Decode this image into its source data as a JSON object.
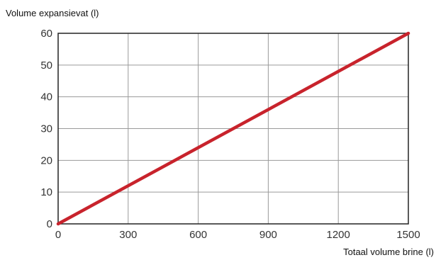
{
  "chart_data": {
    "type": "line",
    "xlabel": "Totaal volume brine (l)",
    "ylabel": "Volume expansievat (l)",
    "xlim": [
      0,
      1500
    ],
    "ylim": [
      0,
      60
    ],
    "x_ticks": [
      "0",
      "300",
      "600",
      "900",
      "1200",
      "1500"
    ],
    "y_ticks": [
      "0",
      "10",
      "20",
      "30",
      "40",
      "50",
      "60"
    ],
    "grid": true,
    "legend": "none",
    "series": [
      {
        "color": "#c8232c",
        "x": [
          0,
          1500
        ],
        "y": [
          0,
          60
        ]
      }
    ]
  }
}
